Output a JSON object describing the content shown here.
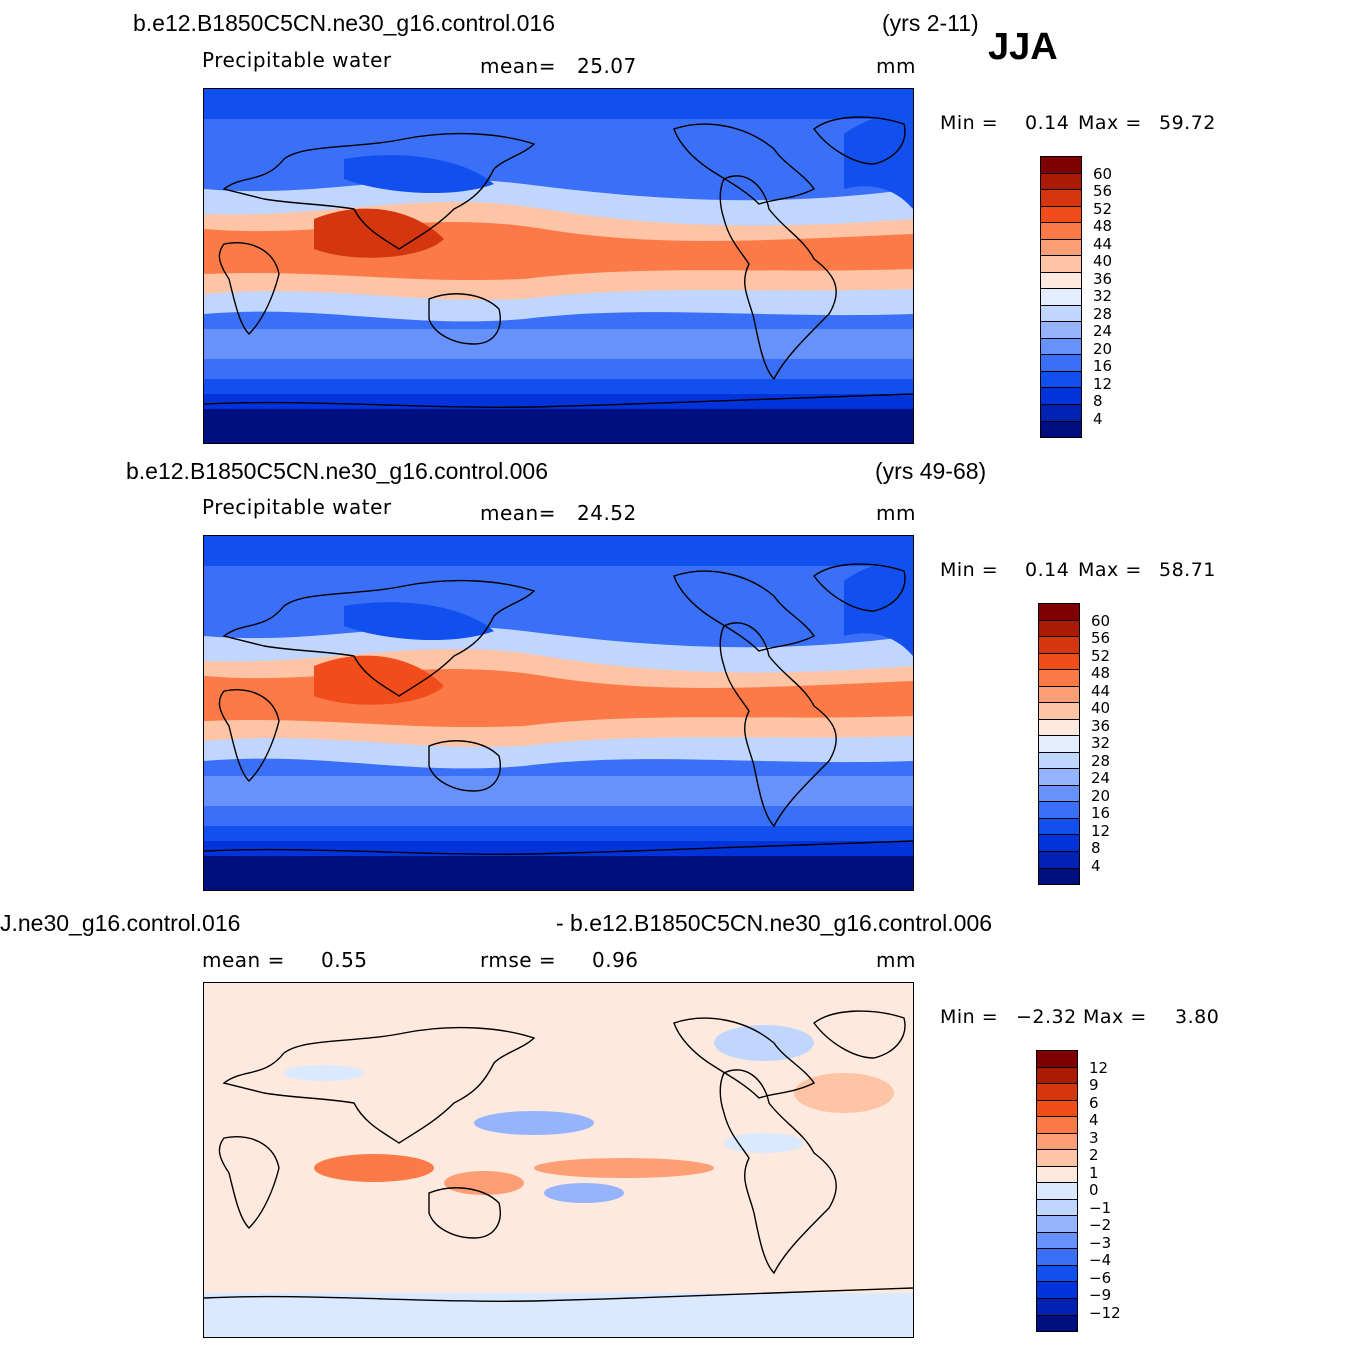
{
  "season": "JJA",
  "colors": {
    "precip_scale": [
      "#000f7f",
      "#0022b3",
      "#0033d9",
      "#1150ee",
      "#3a6ff7",
      "#6791fb",
      "#96b3fd",
      "#c1d6fe",
      "#e3edfe",
      "#fde9dd",
      "#fdc4a6",
      "#fc9f75",
      "#fb7a47",
      "#f14d1b",
      "#d43610",
      "#aa1a05",
      "#7f0000"
    ],
    "diff_scale": [
      "#000f7f",
      "#0022b3",
      "#0033d9",
      "#1150ee",
      "#3a6ff7",
      "#6791fb",
      "#96b3fd",
      "#c1d6fe",
      "#dbe9fe",
      "#fde9dd",
      "#fdc4a6",
      "#fc9f75",
      "#fb7a47",
      "#f14d1b",
      "#d43610",
      "#aa1a05",
      "#7f0000"
    ]
  },
  "panels": [
    {
      "title": "b.e12.B1850C5CN.ne30_g16.control.016",
      "years": "(yrs 2-11)",
      "variable": "Precipitable  water",
      "mean_label": "mean=",
      "mean_value": "25.07",
      "units": "mm",
      "min_label": "Min  =",
      "min_value": "0.14",
      "max_label": "Max  =",
      "max_value": "59.72",
      "ticks": [
        "60",
        "56",
        "52",
        "48",
        "44",
        "40",
        "36",
        "32",
        "28",
        "24",
        "20",
        "16",
        "12",
        "8",
        "4"
      ]
    },
    {
      "title": "b.e12.B1850C5CN.ne30_g16.control.006",
      "years": "(yrs 49-68)",
      "variable": "Precipitable  water",
      "mean_label": "mean=",
      "mean_value": "24.52",
      "units": "mm",
      "min_label": "Min  =",
      "min_value": "0.14",
      "max_label": "Max  =",
      "max_value": "58.71",
      "ticks": [
        "60",
        "56",
        "52",
        "48",
        "44",
        "40",
        "36",
        "32",
        "28",
        "24",
        "20",
        "16",
        "12",
        "8",
        "4"
      ]
    },
    {
      "title_left": "J.ne30_g16.control.016",
      "title_right": "- b.e12.B1850C5CN.ne30_g16.control.006",
      "mean_label": "mean  =",
      "mean_value": "0.55",
      "rmse_label": "rmse  =",
      "rmse_value": "0.96",
      "units": "mm",
      "min_label": "Min  =",
      "min_value": "−2.32",
      "max_label": "Max  =",
      "max_value": "3.80",
      "ticks": [
        "12",
        "9",
        "6",
        "4",
        "3",
        "2",
        "1",
        "0",
        "−1",
        "−2",
        "−3",
        "−4",
        "−6",
        "−9",
        "−12"
      ]
    }
  ]
}
